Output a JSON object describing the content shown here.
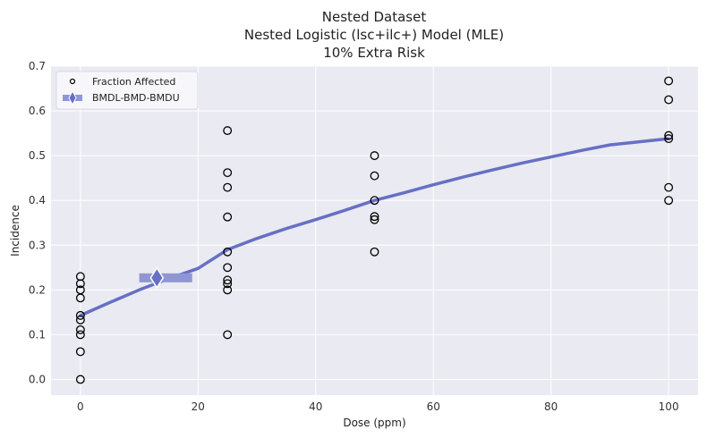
{
  "chart_data": {
    "type": "scatter",
    "title_lines": [
      "Nested Dataset",
      "Nested Logistic (lsc+ilc+) Model (MLE)",
      "10% Extra Risk"
    ],
    "xlabel": "Dose (ppm)",
    "ylabel": "Incidence",
    "xlim": [
      -5,
      105
    ],
    "ylim": [
      -0.035,
      0.7
    ],
    "xticks": [
      0,
      20,
      40,
      60,
      80,
      100
    ],
    "yticks": [
      0.0,
      0.1,
      0.2,
      0.3,
      0.4,
      0.5,
      0.6,
      0.7
    ],
    "xtick_labels": [
      "0",
      "20",
      "40",
      "60",
      "80",
      "100"
    ],
    "ytick_labels": [
      "0.0",
      "0.1",
      "0.2",
      "0.3",
      "0.4",
      "0.5",
      "0.6",
      "0.7"
    ],
    "grid": true,
    "legend_position": "top-left",
    "colors": {
      "background": "#eaeaf2",
      "model": "#6670c4",
      "bmd": "#8f96d4",
      "grid": "#ffffff"
    },
    "points_series_name": "Fraction Affected",
    "points": [
      {
        "x": 0,
        "y": 0.0
      },
      {
        "x": 0,
        "y": 0.062
      },
      {
        "x": 0,
        "y": 0.1
      },
      {
        "x": 0,
        "y": 0.111
      },
      {
        "x": 0,
        "y": 0.133
      },
      {
        "x": 0,
        "y": 0.143
      },
      {
        "x": 0,
        "y": 0.182
      },
      {
        "x": 0,
        "y": 0.2
      },
      {
        "x": 0,
        "y": 0.214
      },
      {
        "x": 0,
        "y": 0.23
      },
      {
        "x": 25,
        "y": 0.1
      },
      {
        "x": 25,
        "y": 0.2
      },
      {
        "x": 25,
        "y": 0.214
      },
      {
        "x": 25,
        "y": 0.222
      },
      {
        "x": 25,
        "y": 0.25
      },
      {
        "x": 25,
        "y": 0.285
      },
      {
        "x": 25,
        "y": 0.363
      },
      {
        "x": 25,
        "y": 0.429
      },
      {
        "x": 25,
        "y": 0.462
      },
      {
        "x": 25,
        "y": 0.556
      },
      {
        "x": 50,
        "y": 0.285
      },
      {
        "x": 50,
        "y": 0.357
      },
      {
        "x": 50,
        "y": 0.364
      },
      {
        "x": 50,
        "y": 0.4
      },
      {
        "x": 50,
        "y": 0.455
      },
      {
        "x": 50,
        "y": 0.5
      },
      {
        "x": 100,
        "y": 0.4
      },
      {
        "x": 100,
        "y": 0.429
      },
      {
        "x": 100,
        "y": 0.538
      },
      {
        "x": 100,
        "y": 0.545
      },
      {
        "x": 100,
        "y": 0.625
      },
      {
        "x": 100,
        "y": 0.667
      }
    ],
    "model_curve": {
      "x": [
        0,
        5,
        10,
        15,
        20,
        25,
        30,
        35,
        40,
        45,
        50,
        55,
        60,
        65,
        70,
        75,
        80,
        85,
        90,
        95,
        100
      ],
      "y": [
        0.143,
        0.172,
        0.2,
        0.225,
        0.248,
        0.29,
        0.315,
        0.337,
        0.357,
        0.378,
        0.4,
        0.417,
        0.435,
        0.452,
        0.468,
        0.483,
        0.497,
        0.511,
        0.524,
        0.531,
        0.538
      ]
    },
    "bmd_series_name": "BMDL-BMD-BMDU",
    "bmd": {
      "bmdl": 10,
      "bmd": 13,
      "bmdu": 19,
      "y": 0.227
    }
  }
}
